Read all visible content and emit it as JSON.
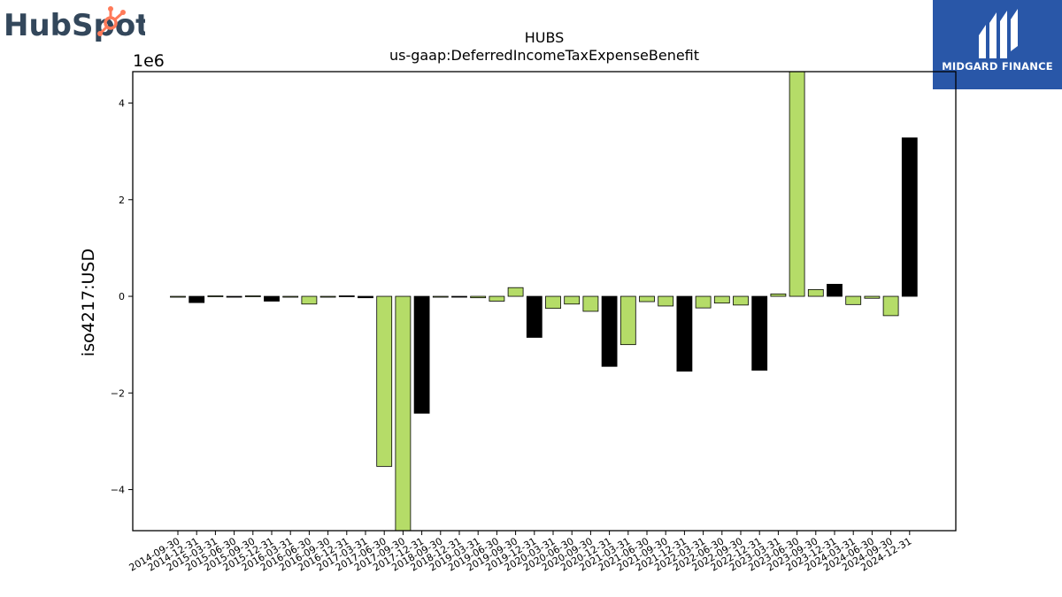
{
  "branding": {
    "left_logo_text": "HubSpot",
    "left_logo_color": "#33475b",
    "left_logo_accent": "#ff7a59",
    "right_logo_text": "MIDGARD FINANCE",
    "right_logo_bg": "#2957a8"
  },
  "chart_data": {
    "type": "bar",
    "title": "HUBS",
    "subtitle": "us-gaap:DeferredIncomeTaxExpenseBenefit",
    "ylabel": "iso4217:USD",
    "xlabel": "",
    "scale_label": "1e6",
    "ylim": [
      -4.85,
      4.65
    ],
    "yticks": [
      -4,
      -2,
      0,
      2,
      4
    ],
    "ytick_labels": [
      "−4",
      "−2",
      "0",
      "2",
      "4"
    ],
    "grid": false,
    "legend": "none",
    "colors": {
      "green": "#b5dc68",
      "black": "#000000"
    },
    "categories": [
      "2014-09-30",
      "2014-12-31",
      "2015-03-31",
      "2015-06-30",
      "2015-09-30",
      "2015-12-31",
      "2016-03-31",
      "2016-06-30",
      "2016-09-30",
      "2016-12-31",
      "2017-03-31",
      "2017-06-30",
      "2017-09-30",
      "2017-12-31",
      "2018-09-30",
      "2018-12-31",
      "2019-03-31",
      "2019-06-30",
      "2019-09-30",
      "2019-12-31",
      "2020-03-31",
      "2020-06-30",
      "2020-09-30",
      "2020-12-31",
      "2021-03-31",
      "2021-06-30",
      "2021-09-30",
      "2021-12-31",
      "2022-03-31",
      "2022-06-30",
      "2022-09-30",
      "2022-12-31",
      "2023-03-31",
      "2023-06-30",
      "2023-09-30",
      "2023-12-31",
      "2024-03-31",
      "2024-06-30",
      "2024-09-30",
      "2024-12-31"
    ],
    "values": [
      -0.01,
      -0.13,
      0.01,
      -0.01,
      0.01,
      -0.1,
      -0.01,
      -0.16,
      -0.01,
      0.01,
      -0.03,
      -3.52,
      -4.88,
      -2.42,
      -0.01,
      -0.01,
      -0.03,
      -0.1,
      0.18,
      -0.85,
      -0.25,
      -0.16,
      -0.31,
      -1.45,
      -1.0,
      -0.11,
      -0.2,
      -1.55,
      -0.24,
      -0.14,
      -0.18,
      -1.53,
      0.05,
      4.68,
      0.14,
      0.25,
      -0.17,
      -0.04,
      -0.4,
      3.28
    ],
    "bar_colors": [
      "green",
      "black",
      "green",
      "black",
      "green",
      "black",
      "green",
      "green",
      "green",
      "black",
      "black",
      "green",
      "green",
      "black",
      "green",
      "black",
      "green",
      "green",
      "green",
      "black",
      "green",
      "green",
      "green",
      "black",
      "green",
      "green",
      "green",
      "black",
      "green",
      "green",
      "green",
      "black",
      "green",
      "green",
      "green",
      "black",
      "green",
      "green",
      "green",
      "black"
    ]
  }
}
